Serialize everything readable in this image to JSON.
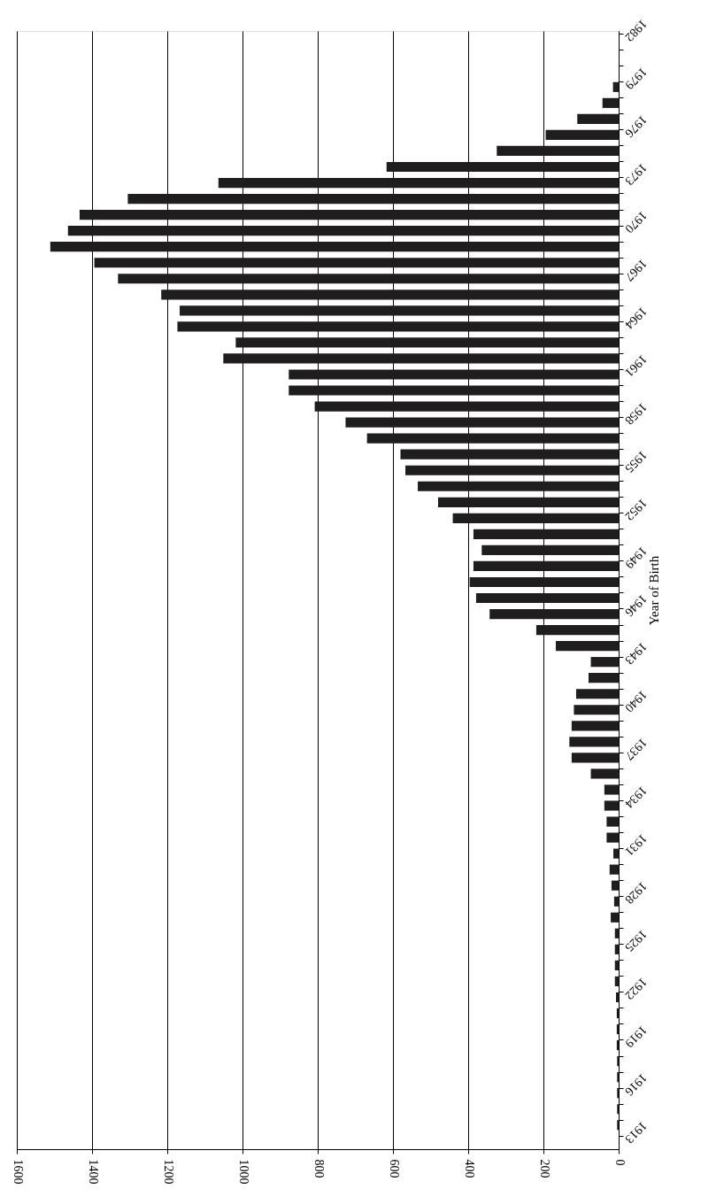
{
  "chart_data": {
    "type": "bar",
    "orientation": "horizontal",
    "ylabel": "Year of Birth",
    "categories": [
      "1982",
      null,
      null,
      "1979",
      null,
      null,
      "1976",
      null,
      null,
      "1973",
      null,
      null,
      "1970",
      null,
      null,
      "1967",
      null,
      null,
      "1964",
      null,
      null,
      "1961",
      null,
      null,
      "1958",
      null,
      null,
      "1955",
      null,
      null,
      "1952",
      null,
      null,
      "1949",
      null,
      null,
      "1946",
      null,
      null,
      "1943",
      null,
      null,
      "1940",
      null,
      null,
      "1937",
      null,
      null,
      "1934",
      null,
      null,
      "1931",
      null,
      null,
      "1928",
      null,
      null,
      "1925",
      null,
      null,
      "1922",
      null,
      null,
      "1919",
      null,
      null,
      "1916",
      null,
      null,
      "1913"
    ],
    "values": [
      0,
      0,
      0,
      15,
      43,
      110,
      194,
      324,
      617,
      1064,
      1305,
      1433,
      1464,
      1511,
      1394,
      1331,
      1216,
      1167,
      1173,
      1018,
      1051,
      877,
      877,
      808,
      726,
      669,
      580,
      567,
      534,
      480,
      441,
      386,
      364,
      386,
      396,
      379,
      343,
      219,
      167,
      74,
      80,
      113,
      119,
      125,
      131,
      125,
      74,
      38,
      38,
      32,
      32,
      14,
      24,
      19,
      12,
      21,
      10,
      10,
      10,
      10,
      7,
      5,
      5,
      5,
      4,
      4,
      4,
      4,
      4,
      0
    ],
    "color": "#1f1d1e",
    "xlim": [
      1600,
      0
    ],
    "xticks": [
      1600,
      1400,
      1200,
      1000,
      800,
      600,
      400,
      200,
      0
    ],
    "grid": "x"
  }
}
